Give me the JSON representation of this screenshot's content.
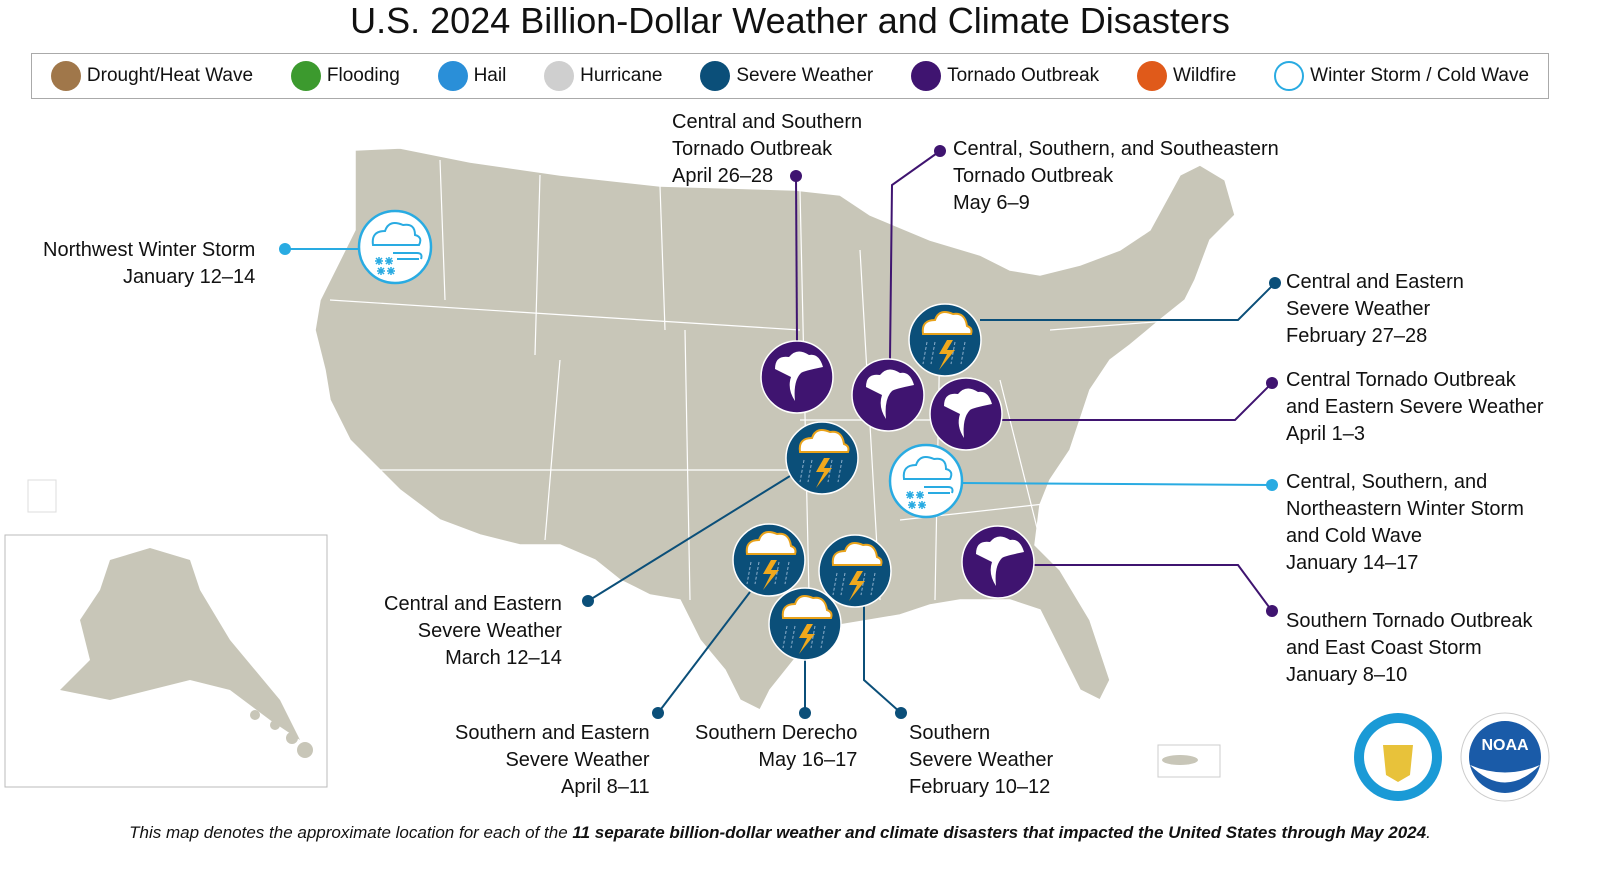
{
  "title": "U.S. 2024 Billion-Dollar Weather and Climate Disasters",
  "legend": [
    {
      "label": "Drought/Heat Wave",
      "icon": "drought-icon",
      "color": "#a0774a"
    },
    {
      "label": "Flooding",
      "icon": "flooding-icon",
      "color": "#3c9a2e"
    },
    {
      "label": "Hail",
      "icon": "hail-icon",
      "color": "#2a8fd8"
    },
    {
      "label": "Hurricane",
      "icon": "hurricane-icon",
      "color": "#cfcfcf"
    },
    {
      "label": "Severe Weather",
      "icon": "severe-weather-icon",
      "color": "#0b4f79"
    },
    {
      "label": "Tornado Outbreak",
      "icon": "tornado-icon",
      "color": "#3f1470"
    },
    {
      "label": "Wildfire",
      "icon": "wildfire-icon",
      "color": "#e05a1a"
    },
    {
      "label": "Winter Storm / Cold Wave",
      "icon": "winter-storm-icon",
      "color": "#29abe2"
    }
  ],
  "events": [
    {
      "type": "winter",
      "lines": [
        "Northwest Winter Storm",
        "January 12–14"
      ]
    },
    {
      "type": "tornado",
      "lines": [
        "Central and Southern",
        "Tornado Outbreak",
        "April 26–28"
      ]
    },
    {
      "type": "tornado",
      "lines": [
        "Central, Southern, and Southeastern",
        "Tornado Outbreak",
        "May 6–9"
      ]
    },
    {
      "type": "severe",
      "lines": [
        "Central and Eastern",
        "Severe Weather",
        "February 27–28"
      ]
    },
    {
      "type": "tornado",
      "lines": [
        "Central Tornado Outbreak",
        "and Eastern Severe Weather",
        "April 1–3"
      ]
    },
    {
      "type": "winter",
      "lines": [
        "Central, Southern, and",
        "Northeastern Winter Storm",
        "and Cold Wave",
        "January 14–17"
      ]
    },
    {
      "type": "tornado",
      "lines": [
        "Southern Tornado Outbreak",
        "and East Coast Storm",
        "January 8–10"
      ]
    },
    {
      "type": "severe",
      "lines": [
        "Central and Eastern",
        "Severe Weather",
        "March 12–14"
      ]
    },
    {
      "type": "severe",
      "lines": [
        "Southern and Eastern",
        "Severe Weather",
        "April 8–11"
      ]
    },
    {
      "type": "severe",
      "lines": [
        "Southern Derecho",
        "May 16–17"
      ]
    },
    {
      "type": "severe",
      "lines": [
        "Southern",
        "Severe Weather",
        "February 10–12"
      ]
    }
  ],
  "footer": {
    "pre": "This map denotes the approximate location for each of the ",
    "bold": "11 separate billion-dollar weather and climate disasters that impacted the United States through May 2024",
    "post": "."
  },
  "logos": {
    "doc": "DEPARTMENT OF COMMERCE · UNITED STATES OF AMERICA",
    "noaa": "NOAA"
  },
  "colors": {
    "map": "#c8c6b8",
    "tornado": "#3f1470",
    "severe": "#0b4f79",
    "winter": "#29abe2"
  }
}
